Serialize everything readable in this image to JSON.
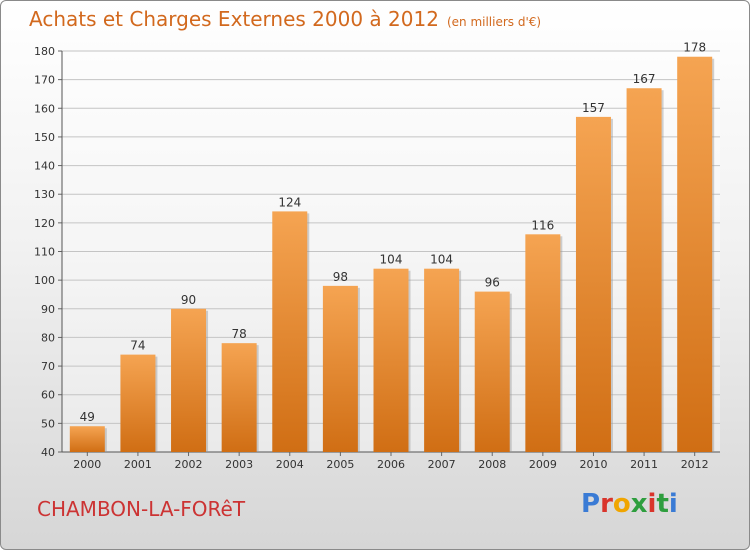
{
  "header": {
    "title": "Achats et Charges Externes 2000 à 2012",
    "subtitle": "(en milliers d'€)"
  },
  "footer": {
    "town": "CHAMBON-LA-FORêT",
    "logo": "Proxiti",
    "logo_colors": [
      "#3a7bd5",
      "#d9342b",
      "#f0a500",
      "#2e9e3e",
      "#d9342b",
      "#2e9e3e",
      "#3a7bd5"
    ]
  },
  "colors": {
    "bar_top": "#f5a452",
    "bar_bottom": "#d06e14",
    "title": "#d2691e",
    "town": "#cc3333"
  },
  "chart_data": {
    "type": "bar",
    "categories": [
      "2000",
      "2001",
      "2002",
      "2003",
      "2004",
      "2005",
      "2006",
      "2007",
      "2008",
      "2009",
      "2010",
      "2011",
      "2012"
    ],
    "values": [
      49,
      74,
      90,
      78,
      124,
      98,
      104,
      104,
      96,
      116,
      157,
      167,
      178
    ],
    "title": "Achats et Charges Externes 2000 à 2012",
    "xlabel": "",
    "ylabel": "",
    "ylim": [
      40,
      180
    ],
    "yticks": [
      40,
      50,
      60,
      70,
      80,
      90,
      100,
      110,
      120,
      130,
      140,
      150,
      160,
      170,
      180
    ],
    "grid": true
  }
}
